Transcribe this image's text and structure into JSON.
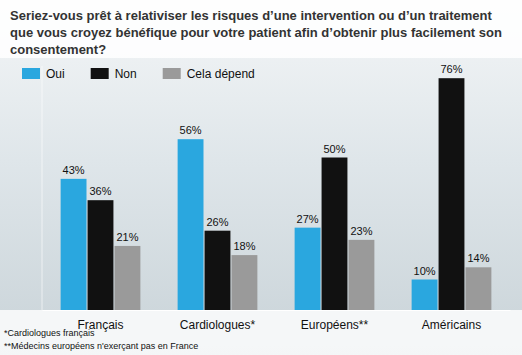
{
  "chart_data": {
    "type": "bar",
    "title": "Seriez-vous prêt à relativiser les risques d’une intervention ou d’un traitement que vous croyez bénéfique pour votre patient afin d’obtenir plus facilement son consentement?",
    "categories": [
      "Français",
      "Cardiologues*",
      "Européens**",
      "Américains"
    ],
    "series": [
      {
        "name": "Oui",
        "color": "#2aa7df",
        "values": [
          43,
          56,
          27,
          10
        ],
        "value_labels": [
          "43%",
          "56%",
          "27%",
          "10%"
        ]
      },
      {
        "name": "Non",
        "color": "#111111",
        "values": [
          36,
          26,
          50,
          76
        ],
        "value_labels": [
          "36%",
          "26%",
          "50%",
          "76%"
        ]
      },
      {
        "name": "Cela dépend",
        "color": "#9a9a9a",
        "values": [
          21,
          18,
          23,
          14
        ],
        "value_labels": [
          "21%",
          "18%",
          "23%",
          "14%"
        ]
      }
    ],
    "ylim": [
      0,
      80
    ],
    "data_labels": true,
    "tick_labels": "x",
    "legend": "top-left",
    "annotations": [
      "*Cardiologues français",
      "**Médecins européens n'exerçant pas en France"
    ]
  }
}
